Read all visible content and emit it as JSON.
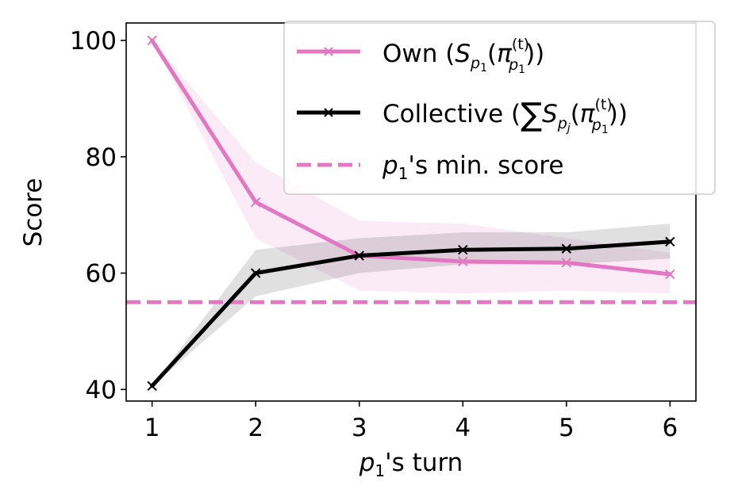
{
  "chart_data": {
    "type": "line",
    "xlabel": {
      "var": "p",
      "sub": "1",
      "rest": "'s turn"
    },
    "ylabel": "Score",
    "x": [
      1,
      2,
      3,
      4,
      5,
      6
    ],
    "xlim": [
      0.75,
      6.25
    ],
    "ylim": [
      38,
      103
    ],
    "xticks": [
      "1",
      "2",
      "3",
      "4",
      "5",
      "6"
    ],
    "yticks": [
      "40",
      "60",
      "80",
      "100"
    ],
    "series": [
      {
        "name": "Own (S_p1(π_p1^(t)))",
        "color": "#e377c2",
        "marker": "x",
        "values": [
          100,
          72.2,
          63.0,
          62.0,
          61.8,
          59.8
        ],
        "band_upper": [
          100,
          79,
          69,
          68.5,
          66,
          63.5
        ],
        "band_lower": [
          100,
          66,
          57,
          56.5,
          57,
          56.5
        ]
      },
      {
        "name": "Collective (∑S_pj(π_p1^(t)))",
        "color": "#000000",
        "marker": "x",
        "values": [
          40.6,
          60.0,
          63.0,
          64.0,
          64.2,
          65.4
        ],
        "band_upper": [
          40.6,
          64,
          66,
          67,
          67,
          68.5
        ],
        "band_lower": [
          40.6,
          56,
          60,
          61.5,
          61.5,
          62.5
        ]
      }
    ],
    "reference_line": {
      "name": "p_1's min. score",
      "y": 55,
      "color": "#e377c2",
      "style": "dashed"
    },
    "legend": {
      "placement": "upper right",
      "entries": [
        {
          "kind": "own",
          "prefix": "Own (",
          "S": "S",
          "p": "p",
          "sub1": "1",
          "pi": "π",
          "t": "(t)",
          "suffix": "))"
        },
        {
          "kind": "collective",
          "prefix": "Collective (",
          "sum": "∑",
          "S": "S",
          "p": "p",
          "subj": "j",
          "pi": "π",
          "t": "(t)",
          "sub1": "1",
          "suffix": "))"
        },
        {
          "kind": "min",
          "var": "p",
          "sub": "1",
          "rest": "'s min. score"
        }
      ]
    },
    "grid": false
  }
}
